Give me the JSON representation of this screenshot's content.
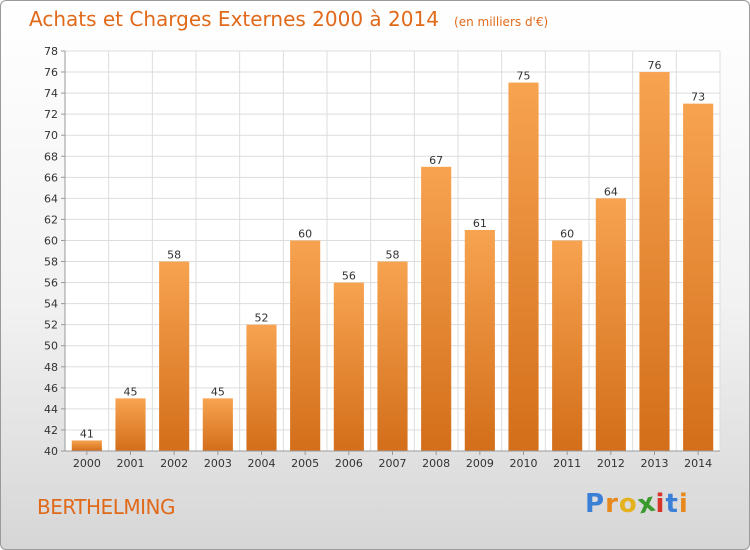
{
  "colors": {
    "title": "#e06a1a",
    "bar_top": "#f7a350",
    "bar_bottom": "#d36e1a",
    "grid": "#dddddd",
    "axis_text": "#333333"
  },
  "header": {
    "title": "Achats et Charges Externes 2000 à 2014",
    "subtitle": "(en milliers d'€)"
  },
  "footer": {
    "commune": "BERTHELMING",
    "brand": "Proxiti",
    "brand_letters": [
      {
        "ch": "P",
        "color": "#3b7fd6"
      },
      {
        "ch": "r",
        "color": "#e8891e"
      },
      {
        "ch": "o",
        "color": "#e5b21f"
      },
      {
        "ch": "x",
        "color": "#3a9a2e"
      },
      {
        "ch": "i",
        "color": "#d8342a"
      },
      {
        "ch": "t",
        "color": "#3b7fd6"
      },
      {
        "ch": "i",
        "color": "#e8891e"
      }
    ]
  },
  "chart_data": {
    "type": "bar",
    "title": "Achats et Charges Externes 2000 à 2014",
    "subtitle": "(en milliers d'€)",
    "categories": [
      "2000",
      "2001",
      "2002",
      "2003",
      "2004",
      "2005",
      "2006",
      "2007",
      "2008",
      "2009",
      "2010",
      "2011",
      "2012",
      "2013",
      "2014"
    ],
    "values": [
      41,
      45,
      58,
      45,
      52,
      60,
      56,
      58,
      67,
      61,
      75,
      60,
      64,
      76,
      73
    ],
    "ylim": [
      40,
      78
    ],
    "yticks": [
      40,
      42,
      44,
      46,
      48,
      50,
      52,
      54,
      56,
      58,
      60,
      62,
      64,
      66,
      68,
      70,
      72,
      74,
      76,
      78
    ],
    "grid": true,
    "xlabel": "",
    "ylabel": ""
  }
}
